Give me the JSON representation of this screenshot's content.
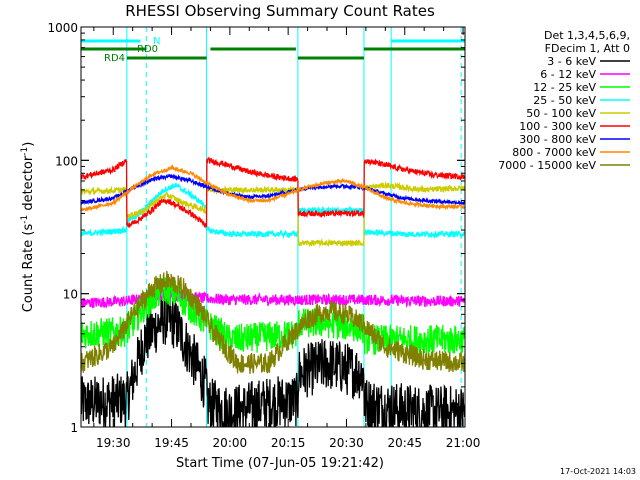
{
  "chart_data": {
    "type": "line",
    "title": "RHESSI Observing Summary Count Rates",
    "xlabel": "Start Time (07-Jun-05 19:21:42)",
    "ylabel_main": "Count Rate (s",
    "ylabel_sup1": "-1",
    "ylabel_mid": " detector",
    "ylabel_sup2": "-1",
    "ylabel_end": ")",
    "y_scale": "log",
    "ylim": [
      1,
      1000
    ],
    "xlim_minutes": [
      21.7,
      120.5
    ],
    "x_ticks": [
      {
        "label": "19:30",
        "min": 30
      },
      {
        "label": "19:45",
        "min": 45
      },
      {
        "label": "20:00",
        "min": 60
      },
      {
        "label": "20:15",
        "min": 75
      },
      {
        "label": "20:30",
        "min": 90
      },
      {
        "label": "20:45",
        "min": 105
      },
      {
        "label": "21:00",
        "min": 120
      }
    ],
    "y_ticks": [
      {
        "label": "1",
        "value": 1
      },
      {
        "label": "10",
        "value": 10
      },
      {
        "label": "100",
        "value": 100
      },
      {
        "label": "1000",
        "value": 1000
      }
    ],
    "legend": {
      "header1": "Det 1,3,4,5,6,9,",
      "header2": "FDecim 1, Att 0",
      "placement": "right",
      "entries": [
        {
          "label": "3 - 6 keV",
          "color": "#000000"
        },
        {
          "label": "6 - 12 keV",
          "color": "#ff00ff"
        },
        {
          "label": "12 - 25 keV",
          "color": "#00ff00"
        },
        {
          "label": "25 - 50 keV",
          "color": "#00ffff"
        },
        {
          "label": "50 - 100 keV",
          "color": "#cccc00"
        },
        {
          "label": "100 - 300 keV",
          "color": "#ff0000"
        },
        {
          "label": "300 - 800 keV",
          "color": "#0000ff"
        },
        {
          "label": "800 - 7000 keV",
          "color": "#ff8800"
        },
        {
          "label": "7000 - 15000 keV",
          "color": "#808000"
        }
      ]
    },
    "flag_labels": {
      "n": "N",
      "rd0": "RD0",
      "rd4": "RD4"
    },
    "flag_bars": {
      "n": [
        [
          21.7,
          37.0
        ],
        [
          101.5,
          120.5
        ]
      ],
      "rd0": [
        [
          21.7,
          38.5
        ],
        [
          55.0,
          77.0
        ],
        [
          94.5,
          120.5
        ]
      ],
      "rd4": [
        [
          33.5,
          54.0
        ],
        [
          77.5,
          94.5
        ]
      ]
    },
    "vlines_solid_min": [
      33.5,
      54.0,
      77.5,
      94.5,
      101.5
    ],
    "vlines_dashed_min": [
      38.5,
      119.5
    ],
    "series": [
      {
        "label": "3 - 6 keV",
        "color": "#000000",
        "noise": 1.6,
        "x": [
          21.7,
          33.5,
          38,
          43,
          46,
          50,
          54,
          54.1,
          60,
          70,
          77.5,
          77.6,
          85,
          94.5,
          94.6,
          100,
          110,
          120.5
        ],
        "y": [
          1.5,
          1.6,
          4.5,
          6.5,
          6.0,
          3.5,
          2.0,
          1.5,
          1.3,
          1.5,
          1.6,
          2.5,
          3.0,
          2.5,
          1.5,
          1.4,
          1.3,
          1.3
        ]
      },
      {
        "label": "6 - 12 keV",
        "color": "#ff00ff",
        "noise": 1.1,
        "x": [
          21.7,
          33.5,
          38,
          43,
          54,
          60,
          77.5,
          90,
          94.5,
          110,
          120.5
        ],
        "y": [
          8.5,
          8.8,
          9.2,
          10.0,
          9.2,
          9.0,
          9.0,
          9.0,
          9.0,
          8.8,
          8.8
        ]
      },
      {
        "label": "12 - 25 keV",
        "color": "#00ff00",
        "noise": 1.3,
        "x": [
          21.7,
          33.5,
          38,
          43,
          46,
          54,
          60,
          77.5,
          77.6,
          85,
          94.5,
          94.6,
          110,
          120.5
        ],
        "y": [
          5.0,
          5.2,
          8.0,
          11.0,
          10.0,
          6.0,
          4.5,
          5.0,
          6.0,
          6.0,
          5.5,
          4.5,
          4.5,
          4.5
        ]
      },
      {
        "label": "25 - 50 keV",
        "color": "#00ffff",
        "noise": 1.05,
        "x": [
          21.7,
          33.4,
          33.5,
          37,
          40,
          43,
          46,
          50,
          54,
          54.1,
          60,
          70,
          77.5,
          77.6,
          85,
          94.5,
          94.6,
          105,
          120.5
        ],
        "y": [
          28,
          30,
          35,
          40,
          50,
          60,
          65,
          55,
          45,
          30,
          28,
          28,
          28,
          42,
          42,
          42,
          29,
          28,
          28
        ]
      },
      {
        "label": "50 - 100 keV",
        "color": "#cccc00",
        "noise": 1.05,
        "x": [
          21.7,
          33.4,
          33.5,
          38,
          42,
          44,
          48,
          54,
          54.1,
          60,
          70,
          77.5,
          77.6,
          90,
          94.5,
          94.6,
          100,
          110,
          120.5
        ],
        "y": [
          58,
          60,
          38,
          42,
          52,
          55,
          48,
          42,
          60,
          60,
          60,
          60,
          24,
          24,
          24,
          62,
          65,
          60,
          62
        ]
      },
      {
        "label": "100 - 300 keV",
        "color": "#ff0000",
        "noise": 1.05,
        "x": [
          21.7,
          30,
          33.4,
          33.5,
          38,
          42,
          44,
          50,
          54,
          54.1,
          58,
          65,
          72,
          77.5,
          77.6,
          90,
          94.5,
          94.6,
          98,
          105,
          112,
          120.5
        ],
        "y": [
          75,
          85,
          100,
          32,
          38,
          48,
          50,
          40,
          32,
          100,
          95,
          82,
          75,
          72,
          40,
          40,
          40,
          100,
          95,
          85,
          78,
          75
        ]
      },
      {
        "label": "300 - 800 keV",
        "color": "#0000ff",
        "noise": 1.03,
        "x": [
          21.7,
          30,
          35,
          40,
          45,
          50,
          55,
          60,
          65,
          70,
          75,
          80,
          85,
          90,
          95,
          100,
          105,
          110,
          115,
          120.5
        ],
        "y": [
          48,
          52,
          62,
          72,
          76,
          70,
          62,
          56,
          53,
          54,
          58,
          62,
          64,
          64,
          62,
          56,
          52,
          50,
          49,
          48
        ]
      },
      {
        "label": "800 - 7000 keV",
        "color": "#ff8800",
        "noise": 1.03,
        "x": [
          21.7,
          30,
          35,
          40,
          45,
          50,
          55,
          60,
          65,
          70,
          75,
          80,
          85,
          90,
          95,
          100,
          105,
          110,
          115,
          120.5
        ],
        "y": [
          42,
          48,
          62,
          78,
          88,
          80,
          65,
          55,
          50,
          50,
          56,
          63,
          68,
          70,
          62,
          52,
          48,
          46,
          45,
          45
        ]
      },
      {
        "label": "7000 - 15000 keV",
        "color": "#808000",
        "noise": 1.2,
        "x": [
          21.7,
          30,
          35,
          40,
          44,
          48,
          52,
          56,
          62,
          70,
          75,
          80,
          85,
          90,
          94,
          100,
          110,
          120.5
        ],
        "y": [
          3.0,
          4.0,
          7.0,
          11.0,
          12.5,
          11.0,
          8.0,
          5.0,
          3.0,
          3.0,
          4.5,
          6.5,
          7.5,
          7.0,
          6.0,
          4.0,
          3.2,
          3.0
        ]
      }
    ],
    "timestamp": "17-Oct-2021 14:03"
  }
}
